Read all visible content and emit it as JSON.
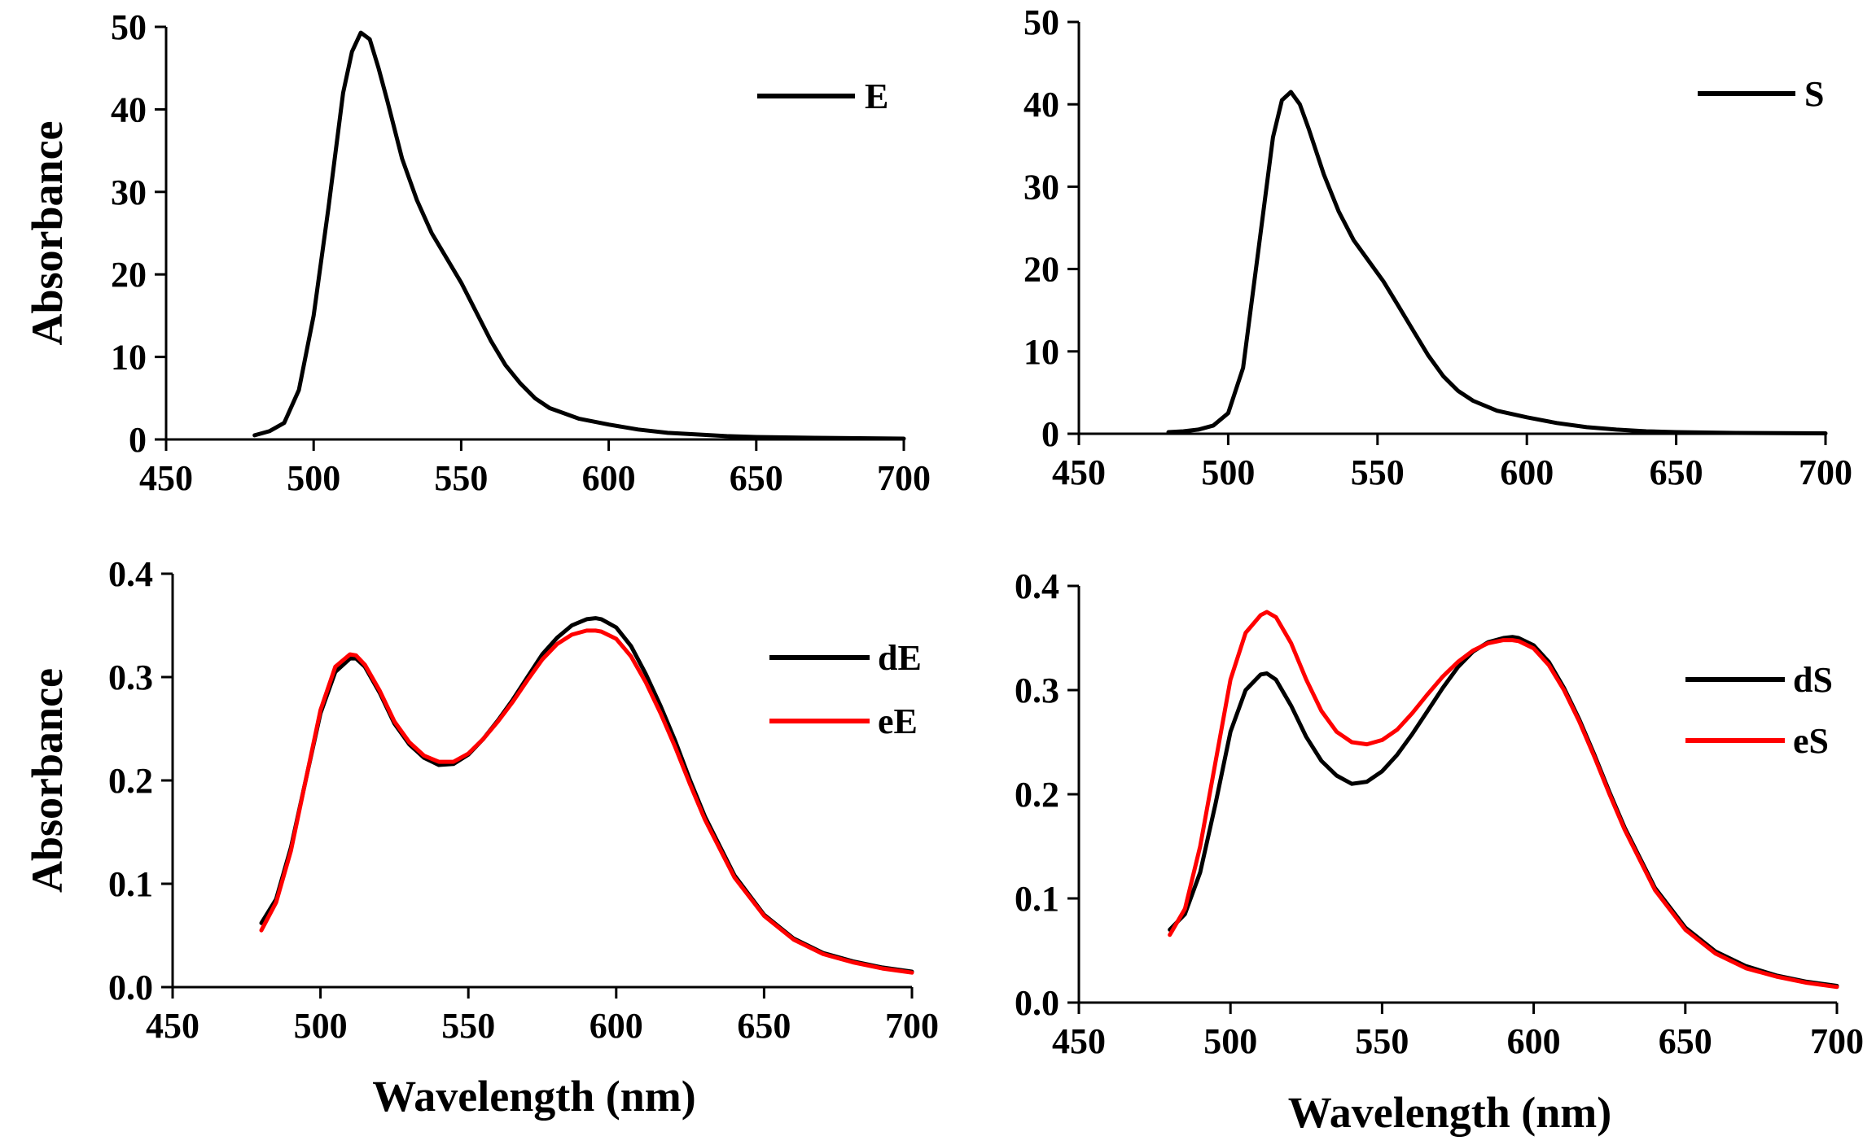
{
  "colors": {
    "black": "#000000",
    "red": "#ff0000"
  },
  "chart_data": [
    {
      "type": "line",
      "panel": "top-left",
      "title": "",
      "xlabel": "",
      "ylabel": "Absorbance",
      "xlim": [
        450,
        700
      ],
      "ylim": [
        0,
        50
      ],
      "xticks": [
        450,
        500,
        550,
        600,
        650,
        700
      ],
      "yticks": [
        0,
        10,
        20,
        30,
        40,
        50
      ],
      "xtick_labels": [
        "450",
        "500",
        "550",
        "600",
        "650",
        "700"
      ],
      "ytick_labels": [
        "0",
        "10",
        "20",
        "30",
        "40",
        "50"
      ],
      "legend_position": "top-right",
      "series": [
        {
          "name": "E",
          "color": "#000000",
          "x": [
            480,
            485,
            490,
            495,
            500,
            505,
            510,
            513,
            516,
            519,
            522,
            525,
            530,
            535,
            540,
            545,
            550,
            555,
            560,
            565,
            570,
            575,
            580,
            590,
            600,
            610,
            620,
            630,
            640,
            650,
            670,
            700
          ],
          "y": [
            0.5,
            1,
            2,
            6,
            15,
            28,
            42,
            47,
            49.3,
            48.5,
            45,
            41,
            34,
            29,
            25,
            22,
            19,
            15.5,
            12,
            9,
            6.8,
            5,
            3.8,
            2.5,
            1.8,
            1.2,
            0.8,
            0.6,
            0.4,
            0.3,
            0.2,
            0.1
          ]
        }
      ]
    },
    {
      "type": "line",
      "panel": "top-right",
      "title": "",
      "xlabel": "",
      "ylabel": "",
      "xlim": [
        450,
        700
      ],
      "ylim": [
        0,
        50
      ],
      "xticks": [
        450,
        500,
        550,
        600,
        650,
        700
      ],
      "yticks": [
        0,
        10,
        20,
        30,
        40,
        50
      ],
      "xtick_labels": [
        "450",
        "500",
        "550",
        "600",
        "650",
        "700"
      ],
      "ytick_labels": [
        "0",
        "10",
        "20",
        "30",
        "40",
        "50"
      ],
      "legend_position": "top-right",
      "series": [
        {
          "name": "S",
          "color": "#000000",
          "x": [
            480,
            485,
            490,
            495,
            500,
            505,
            510,
            515,
            518,
            521,
            524,
            527,
            532,
            537,
            542,
            547,
            552,
            557,
            562,
            567,
            572,
            577,
            582,
            590,
            600,
            610,
            620,
            630,
            640,
            650,
            670,
            700
          ],
          "y": [
            0.2,
            0.3,
            0.5,
            1,
            2.5,
            8,
            22,
            36,
            40.5,
            41.5,
            40,
            37,
            31.5,
            27,
            23.5,
            21,
            18.5,
            15.5,
            12.5,
            9.5,
            7,
            5.2,
            4,
            2.8,
            2,
            1.3,
            0.8,
            0.5,
            0.3,
            0.2,
            0.1,
            0.05
          ]
        }
      ]
    },
    {
      "type": "line",
      "panel": "bottom-left",
      "title": "",
      "xlabel": "Wavelength (nm)",
      "ylabel": "Absorbance",
      "xlim": [
        450,
        700
      ],
      "ylim": [
        0,
        0.4
      ],
      "xticks": [
        450,
        500,
        550,
        600,
        650,
        700
      ],
      "yticks": [
        0,
        0.1,
        0.2,
        0.3,
        0.4
      ],
      "xtick_labels": [
        "450",
        "500",
        "550",
        "600",
        "650",
        "700"
      ],
      "ytick_labels": [
        "0.0",
        "0.1",
        "0.2",
        "0.3",
        "0.4"
      ],
      "legend_position": "right",
      "series": [
        {
          "name": "dE",
          "color": "#000000",
          "x": [
            480,
            485,
            490,
            495,
            500,
            505,
            510,
            512,
            515,
            520,
            525,
            530,
            535,
            540,
            545,
            550,
            555,
            560,
            565,
            570,
            575,
            580,
            585,
            590,
            593,
            595,
            600,
            605,
            610,
            615,
            620,
            625,
            630,
            640,
            650,
            660,
            670,
            680,
            690,
            700
          ],
          "y": [
            0.062,
            0.085,
            0.135,
            0.2,
            0.265,
            0.305,
            0.318,
            0.318,
            0.31,
            0.285,
            0.255,
            0.235,
            0.222,
            0.215,
            0.216,
            0.225,
            0.24,
            0.258,
            0.278,
            0.3,
            0.322,
            0.338,
            0.35,
            0.356,
            0.357,
            0.356,
            0.348,
            0.33,
            0.303,
            0.272,
            0.238,
            0.2,
            0.165,
            0.108,
            0.07,
            0.047,
            0.033,
            0.025,
            0.019,
            0.015
          ]
        },
        {
          "name": "eE",
          "color": "#ff0000",
          "x": [
            480,
            485,
            490,
            495,
            500,
            505,
            510,
            512,
            515,
            520,
            525,
            530,
            535,
            540,
            545,
            550,
            555,
            560,
            565,
            570,
            575,
            580,
            585,
            590,
            593,
            595,
            600,
            605,
            610,
            615,
            620,
            625,
            630,
            640,
            650,
            660,
            670,
            680,
            690,
            700
          ],
          "y": [
            0.055,
            0.082,
            0.132,
            0.2,
            0.268,
            0.31,
            0.322,
            0.321,
            0.312,
            0.287,
            0.257,
            0.237,
            0.224,
            0.218,
            0.218,
            0.226,
            0.24,
            0.257,
            0.276,
            0.297,
            0.317,
            0.332,
            0.341,
            0.345,
            0.345,
            0.344,
            0.337,
            0.32,
            0.295,
            0.265,
            0.232,
            0.196,
            0.162,
            0.106,
            0.069,
            0.046,
            0.032,
            0.024,
            0.018,
            0.014
          ]
        }
      ]
    },
    {
      "type": "line",
      "panel": "bottom-right",
      "title": "",
      "xlabel": "Wavelength (nm)",
      "ylabel": "",
      "xlim": [
        450,
        700
      ],
      "ylim": [
        0,
        0.4
      ],
      "xticks": [
        450,
        500,
        550,
        600,
        650,
        700
      ],
      "yticks": [
        0,
        0.1,
        0.2,
        0.3,
        0.4
      ],
      "xtick_labels": [
        "450",
        "500",
        "550",
        "600",
        "650",
        "700"
      ],
      "ytick_labels": [
        "0.0",
        "0.1",
        "0.2",
        "0.3",
        "0.4"
      ],
      "legend_position": "right",
      "series": [
        {
          "name": "dS",
          "color": "#000000",
          "x": [
            480,
            485,
            490,
            495,
            500,
            505,
            510,
            512,
            515,
            520,
            525,
            530,
            535,
            540,
            545,
            550,
            555,
            560,
            565,
            570,
            575,
            580,
            585,
            590,
            593,
            595,
            600,
            605,
            610,
            615,
            620,
            625,
            630,
            640,
            650,
            660,
            670,
            680,
            690,
            700
          ],
          "y": [
            0.07,
            0.085,
            0.125,
            0.19,
            0.26,
            0.3,
            0.315,
            0.316,
            0.31,
            0.285,
            0.255,
            0.232,
            0.218,
            0.21,
            0.212,
            0.222,
            0.238,
            0.258,
            0.28,
            0.302,
            0.322,
            0.337,
            0.346,
            0.35,
            0.351,
            0.35,
            0.343,
            0.327,
            0.302,
            0.272,
            0.238,
            0.202,
            0.168,
            0.11,
            0.072,
            0.049,
            0.035,
            0.026,
            0.02,
            0.016
          ]
        },
        {
          "name": "eS",
          "color": "#ff0000",
          "x": [
            480,
            485,
            490,
            495,
            500,
            505,
            510,
            512,
            515,
            520,
            525,
            530,
            535,
            540,
            545,
            550,
            555,
            560,
            565,
            570,
            575,
            580,
            585,
            590,
            593,
            595,
            600,
            605,
            610,
            615,
            620,
            625,
            630,
            640,
            650,
            660,
            670,
            680,
            690,
            700
          ],
          "y": [
            0.065,
            0.09,
            0.15,
            0.23,
            0.31,
            0.355,
            0.372,
            0.375,
            0.37,
            0.345,
            0.31,
            0.28,
            0.26,
            0.25,
            0.248,
            0.252,
            0.262,
            0.278,
            0.296,
            0.313,
            0.327,
            0.338,
            0.345,
            0.348,
            0.348,
            0.347,
            0.34,
            0.324,
            0.3,
            0.27,
            0.236,
            0.2,
            0.166,
            0.108,
            0.07,
            0.047,
            0.033,
            0.025,
            0.019,
            0.015
          ]
        }
      ]
    }
  ]
}
